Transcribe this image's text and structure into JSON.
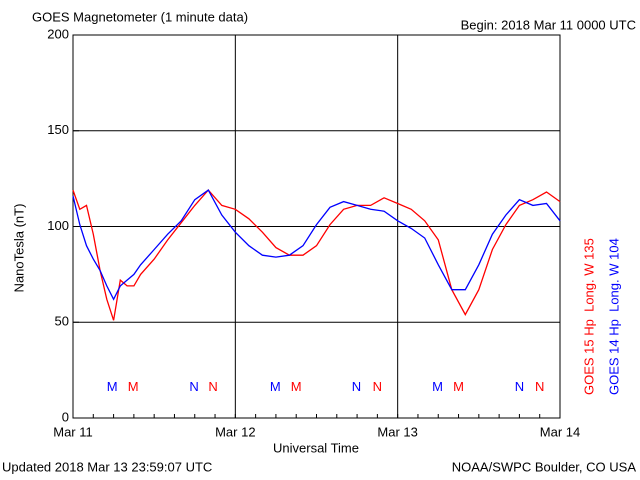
{
  "chart_data": {
    "type": "line",
    "title": "GOES Magnetometer (1 minute data)",
    "subtitle": "Begin:  2018 Mar 11 0000 UTC",
    "y_label": "NanoTesla (nT)",
    "x_label": "Universal Time",
    "footer_left": "Updated 2018 Mar 13 23:59:07 UTC",
    "footer_right": "NOAA/SWPC Boulder, CO USA",
    "x": [
      0,
      1,
      2,
      3,
      4,
      5,
      6,
      7,
      8,
      9,
      10,
      12,
      14,
      16,
      18,
      20,
      22,
      24,
      26,
      28,
      30,
      32,
      34,
      36,
      38,
      40,
      42,
      44,
      46,
      48,
      50,
      52,
      54,
      56,
      58,
      60,
      62,
      64,
      66,
      68,
      70,
      72
    ],
    "series": [
      {
        "name": "GOES 15 Hp  Long. W 135",
        "color": "#ff0000",
        "values": [
          119,
          109,
          111,
          96,
          77,
          62,
          51,
          72,
          69,
          69,
          75,
          83,
          93,
          102,
          111,
          119,
          111,
          109,
          104,
          97,
          89,
          85,
          85,
          90,
          101,
          109,
          111,
          111,
          115,
          112,
          109,
          103,
          93,
          67,
          54,
          67,
          88,
          101,
          111,
          114,
          118,
          113
        ]
      },
      {
        "name": "GOES 14 Hp  Long. W 104",
        "color": "#0000ff",
        "values": [
          116,
          101,
          90,
          83,
          77,
          69,
          62,
          69,
          72,
          75,
          80,
          88,
          96,
          103,
          114,
          119,
          106,
          97,
          90,
          85,
          84,
          85,
          90,
          101,
          110,
          113,
          111,
          109,
          108,
          103,
          99,
          94,
          80,
          67,
          67,
          80,
          96,
          106,
          114,
          111,
          112,
          103
        ]
      }
    ],
    "annotations": [
      {
        "label": "M",
        "x": 5.8,
        "color": "#0000ff"
      },
      {
        "label": "M",
        "x": 8.9,
        "color": "#ff0000"
      },
      {
        "label": "N",
        "x": 17.9,
        "color": "#0000ff"
      },
      {
        "label": "N",
        "x": 20.7,
        "color": "#ff0000"
      },
      {
        "label": "M",
        "x": 29.9,
        "color": "#0000ff"
      },
      {
        "label": "M",
        "x": 33,
        "color": "#ff0000"
      },
      {
        "label": "N",
        "x": 41.9,
        "color": "#0000ff"
      },
      {
        "label": "N",
        "x": 45,
        "color": "#ff0000"
      },
      {
        "label": "M",
        "x": 53.9,
        "color": "#0000ff"
      },
      {
        "label": "M",
        "x": 57,
        "color": "#ff0000"
      },
      {
        "label": "N",
        "x": 66,
        "color": "#0000ff"
      },
      {
        "label": "N",
        "x": 69,
        "color": "#ff0000"
      }
    ],
    "annotation_y": 16,
    "xlim": [
      0,
      72
    ],
    "xticks": [
      {
        "value": 0,
        "label": "Mar 11"
      },
      {
        "value": 24,
        "label": "Mar 12"
      },
      {
        "value": 48,
        "label": "Mar 13"
      },
      {
        "value": 72,
        "label": "Mar 14"
      }
    ],
    "ylim": [
      0,
      200
    ],
    "yticks": [
      0,
      50,
      100,
      150,
      200
    ],
    "grid": true
  }
}
